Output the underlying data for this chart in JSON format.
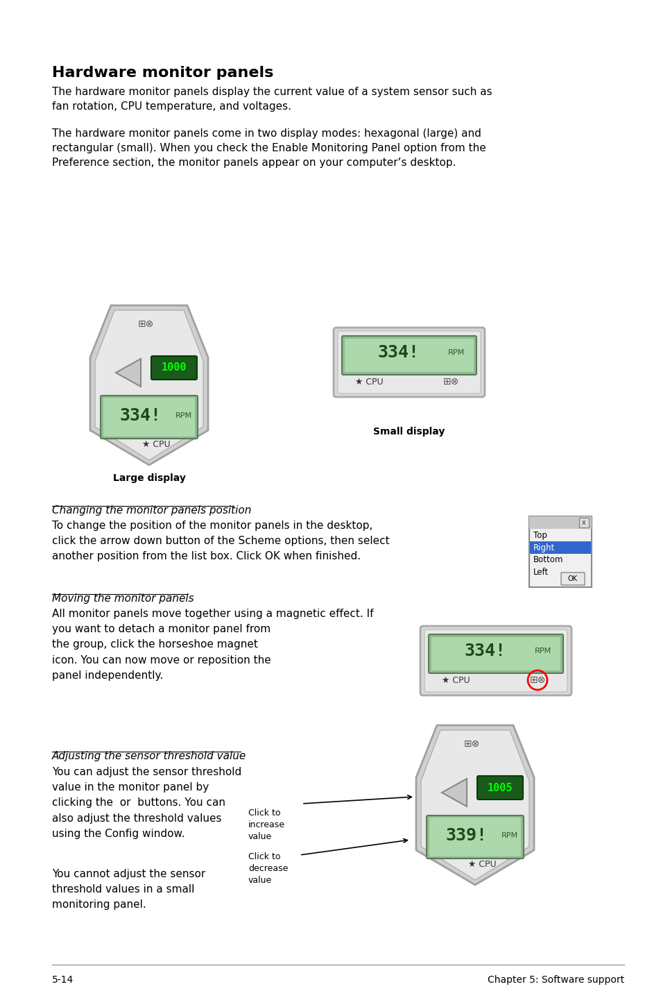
{
  "bg_color": "#ffffff",
  "title": "Hardware monitor panels",
  "para1": "The hardware monitor panels display the current value of a system sensor such as\nfan rotation, CPU temperature, and voltages.",
  "para2": "The hardware monitor panels come in two display modes: hexagonal (large) and\nrectangular (small). When you check the Enable Monitoring Panel option from the\nPreference section, the monitor panels appear on your computer’s desktop.",
  "large_display_label": "Large display",
  "small_display_label": "Small display",
  "section1_title": "Changing the monitor panels position",
  "section1_text": "To change the position of the monitor panels in the desktop,\nclick the arrow down button of the Scheme options, then select\nanother position from the list box. Click OK when finished.",
  "section2_title": "Moving the monitor panels",
  "section2_text": "All monitor panels move together using a magnetic effect. If\nyou want to detach a monitor panel from\nthe group, click the horseshoe magnet\nicon. You can now move or reposition the\npanel independently.",
  "section3_title": "Adjusting the sensor threshold value",
  "section3_text1": "You can adjust the sensor threshold\nvalue in the monitor panel by\nclicking the  or  buttons. You can\nalso adjust the threshold values\nusing the Config window.",
  "section3_text2": "You cannot adjust the sensor\nthreshold values in a small\nmonitoring panel.",
  "click_increase": "Click to\nincrease\nvalue",
  "click_decrease": "Click to\ndecrease\nvalue",
  "footer_left": "5-14",
  "footer_right": "Chapter 5: Software support",
  "list_items": [
    "Top",
    "Right",
    "Bottom",
    "Left"
  ],
  "list_selected": "Right"
}
